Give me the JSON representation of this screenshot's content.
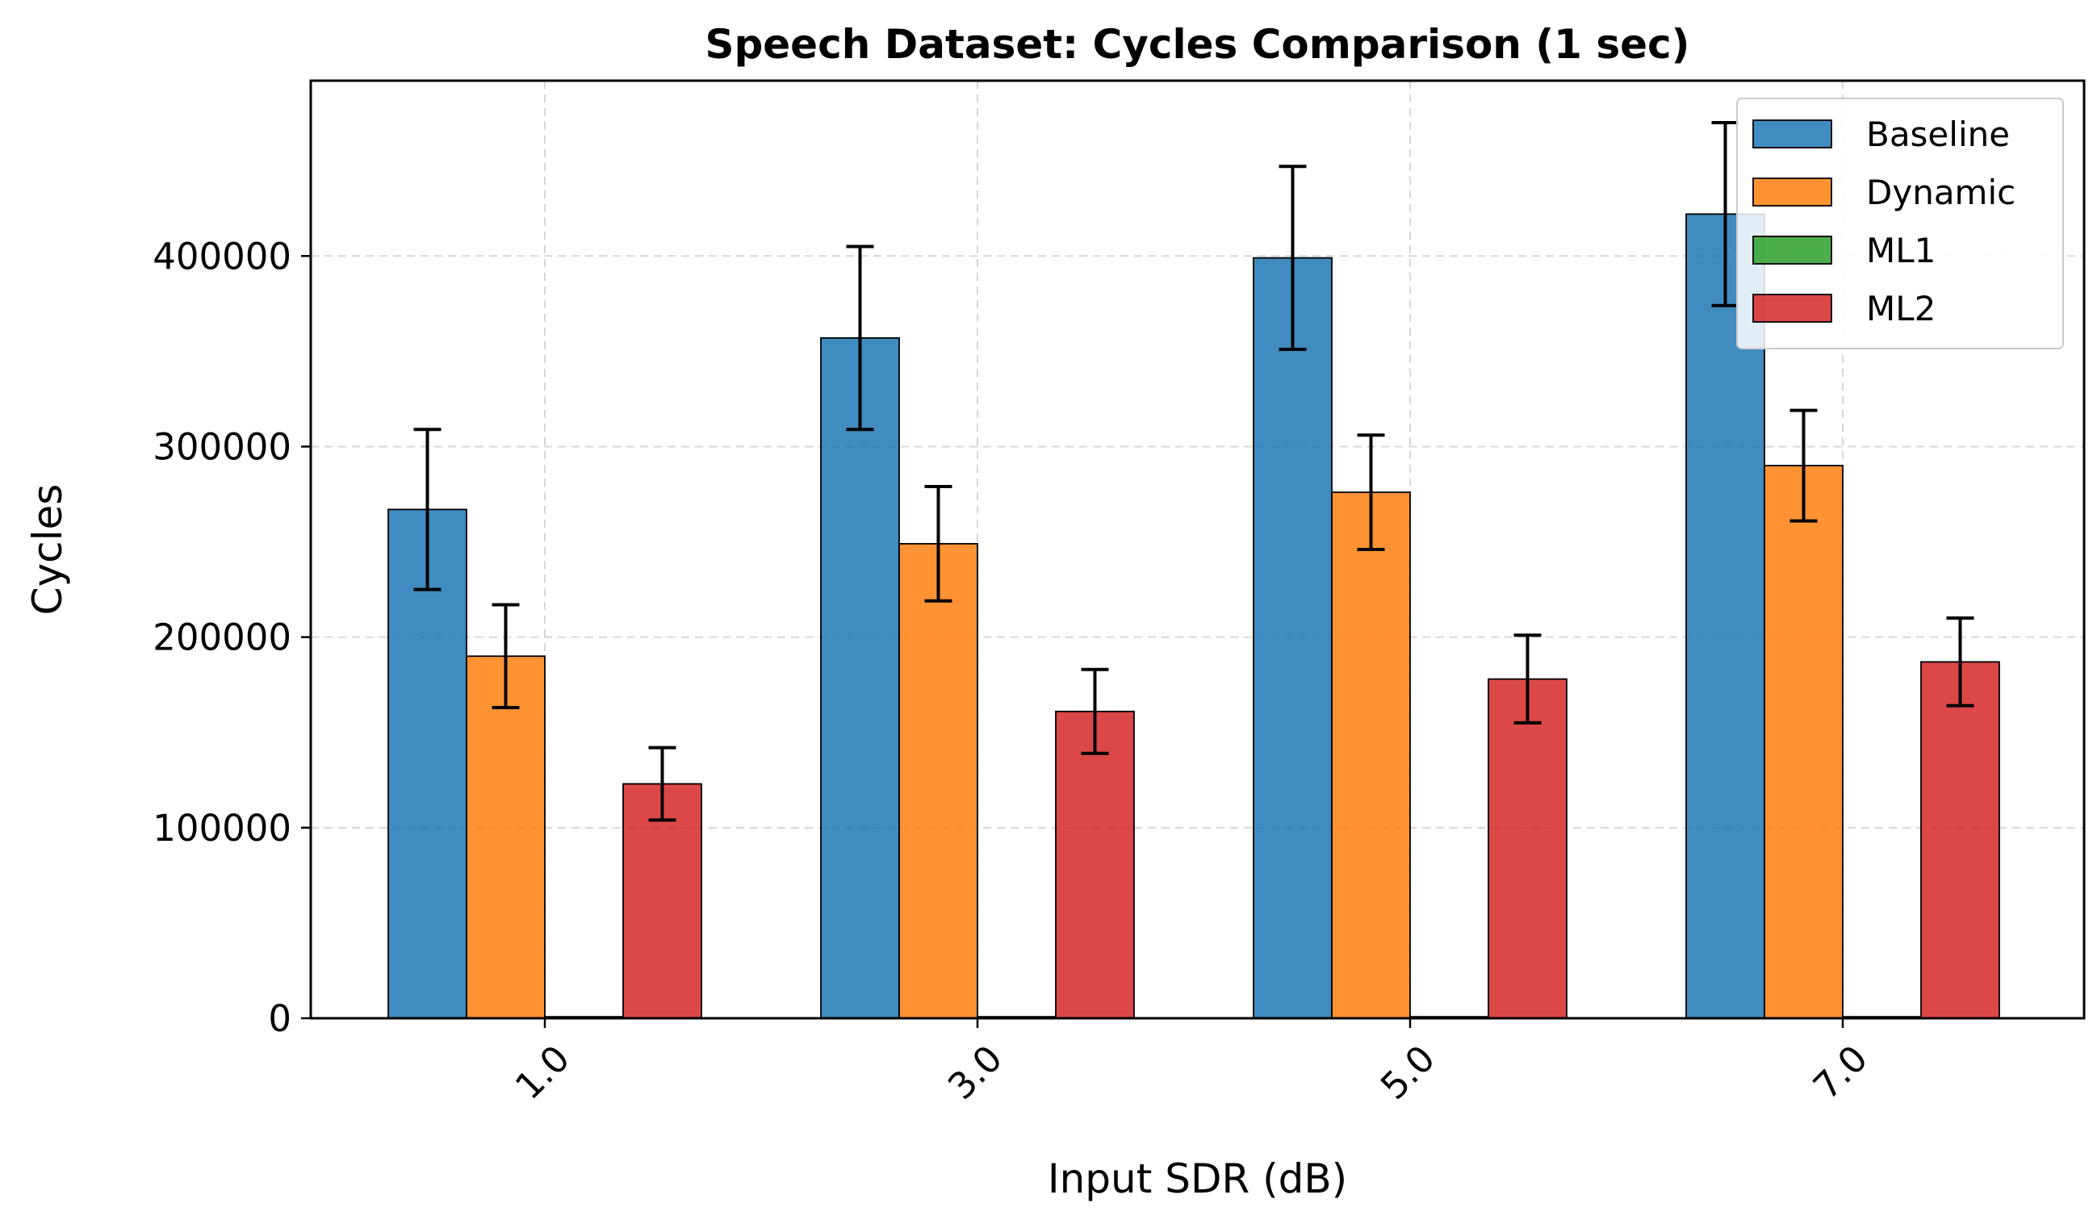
{
  "chart_data": {
    "type": "bar",
    "title": "Speech Dataset: Cycles Comparison (1 sec)",
    "xlabel": "Input SDR (dB)",
    "ylabel": "Cycles",
    "categories": [
      "1.0",
      "3.0",
      "5.0",
      "7.0"
    ],
    "ylim": [
      0,
      492000
    ],
    "yticks": [
      0,
      100000,
      200000,
      300000,
      400000
    ],
    "ytick_labels": [
      "0",
      "100000",
      "200000",
      "300000",
      "400000"
    ],
    "grid": true,
    "legend_position": "top-right",
    "series": [
      {
        "name": "Baseline",
        "color": "#1f77b4",
        "values": [
          267000,
          357000,
          399000,
          422000
        ],
        "errors": [
          42000,
          48000,
          48000,
          48000
        ]
      },
      {
        "name": "Dynamic",
        "color": "#ff7f0e",
        "values": [
          190000,
          249000,
          276000,
          290000
        ],
        "errors": [
          27000,
          30000,
          30000,
          29000
        ]
      },
      {
        "name": "ML1",
        "color": "#2ca02c",
        "values": [
          800,
          800,
          800,
          800
        ],
        "errors": [
          0,
          0,
          0,
          0
        ]
      },
      {
        "name": "ML2",
        "color": "#d62728",
        "values": [
          123000,
          161000,
          178000,
          187000
        ],
        "errors": [
          19000,
          22000,
          23000,
          23000
        ]
      }
    ]
  }
}
